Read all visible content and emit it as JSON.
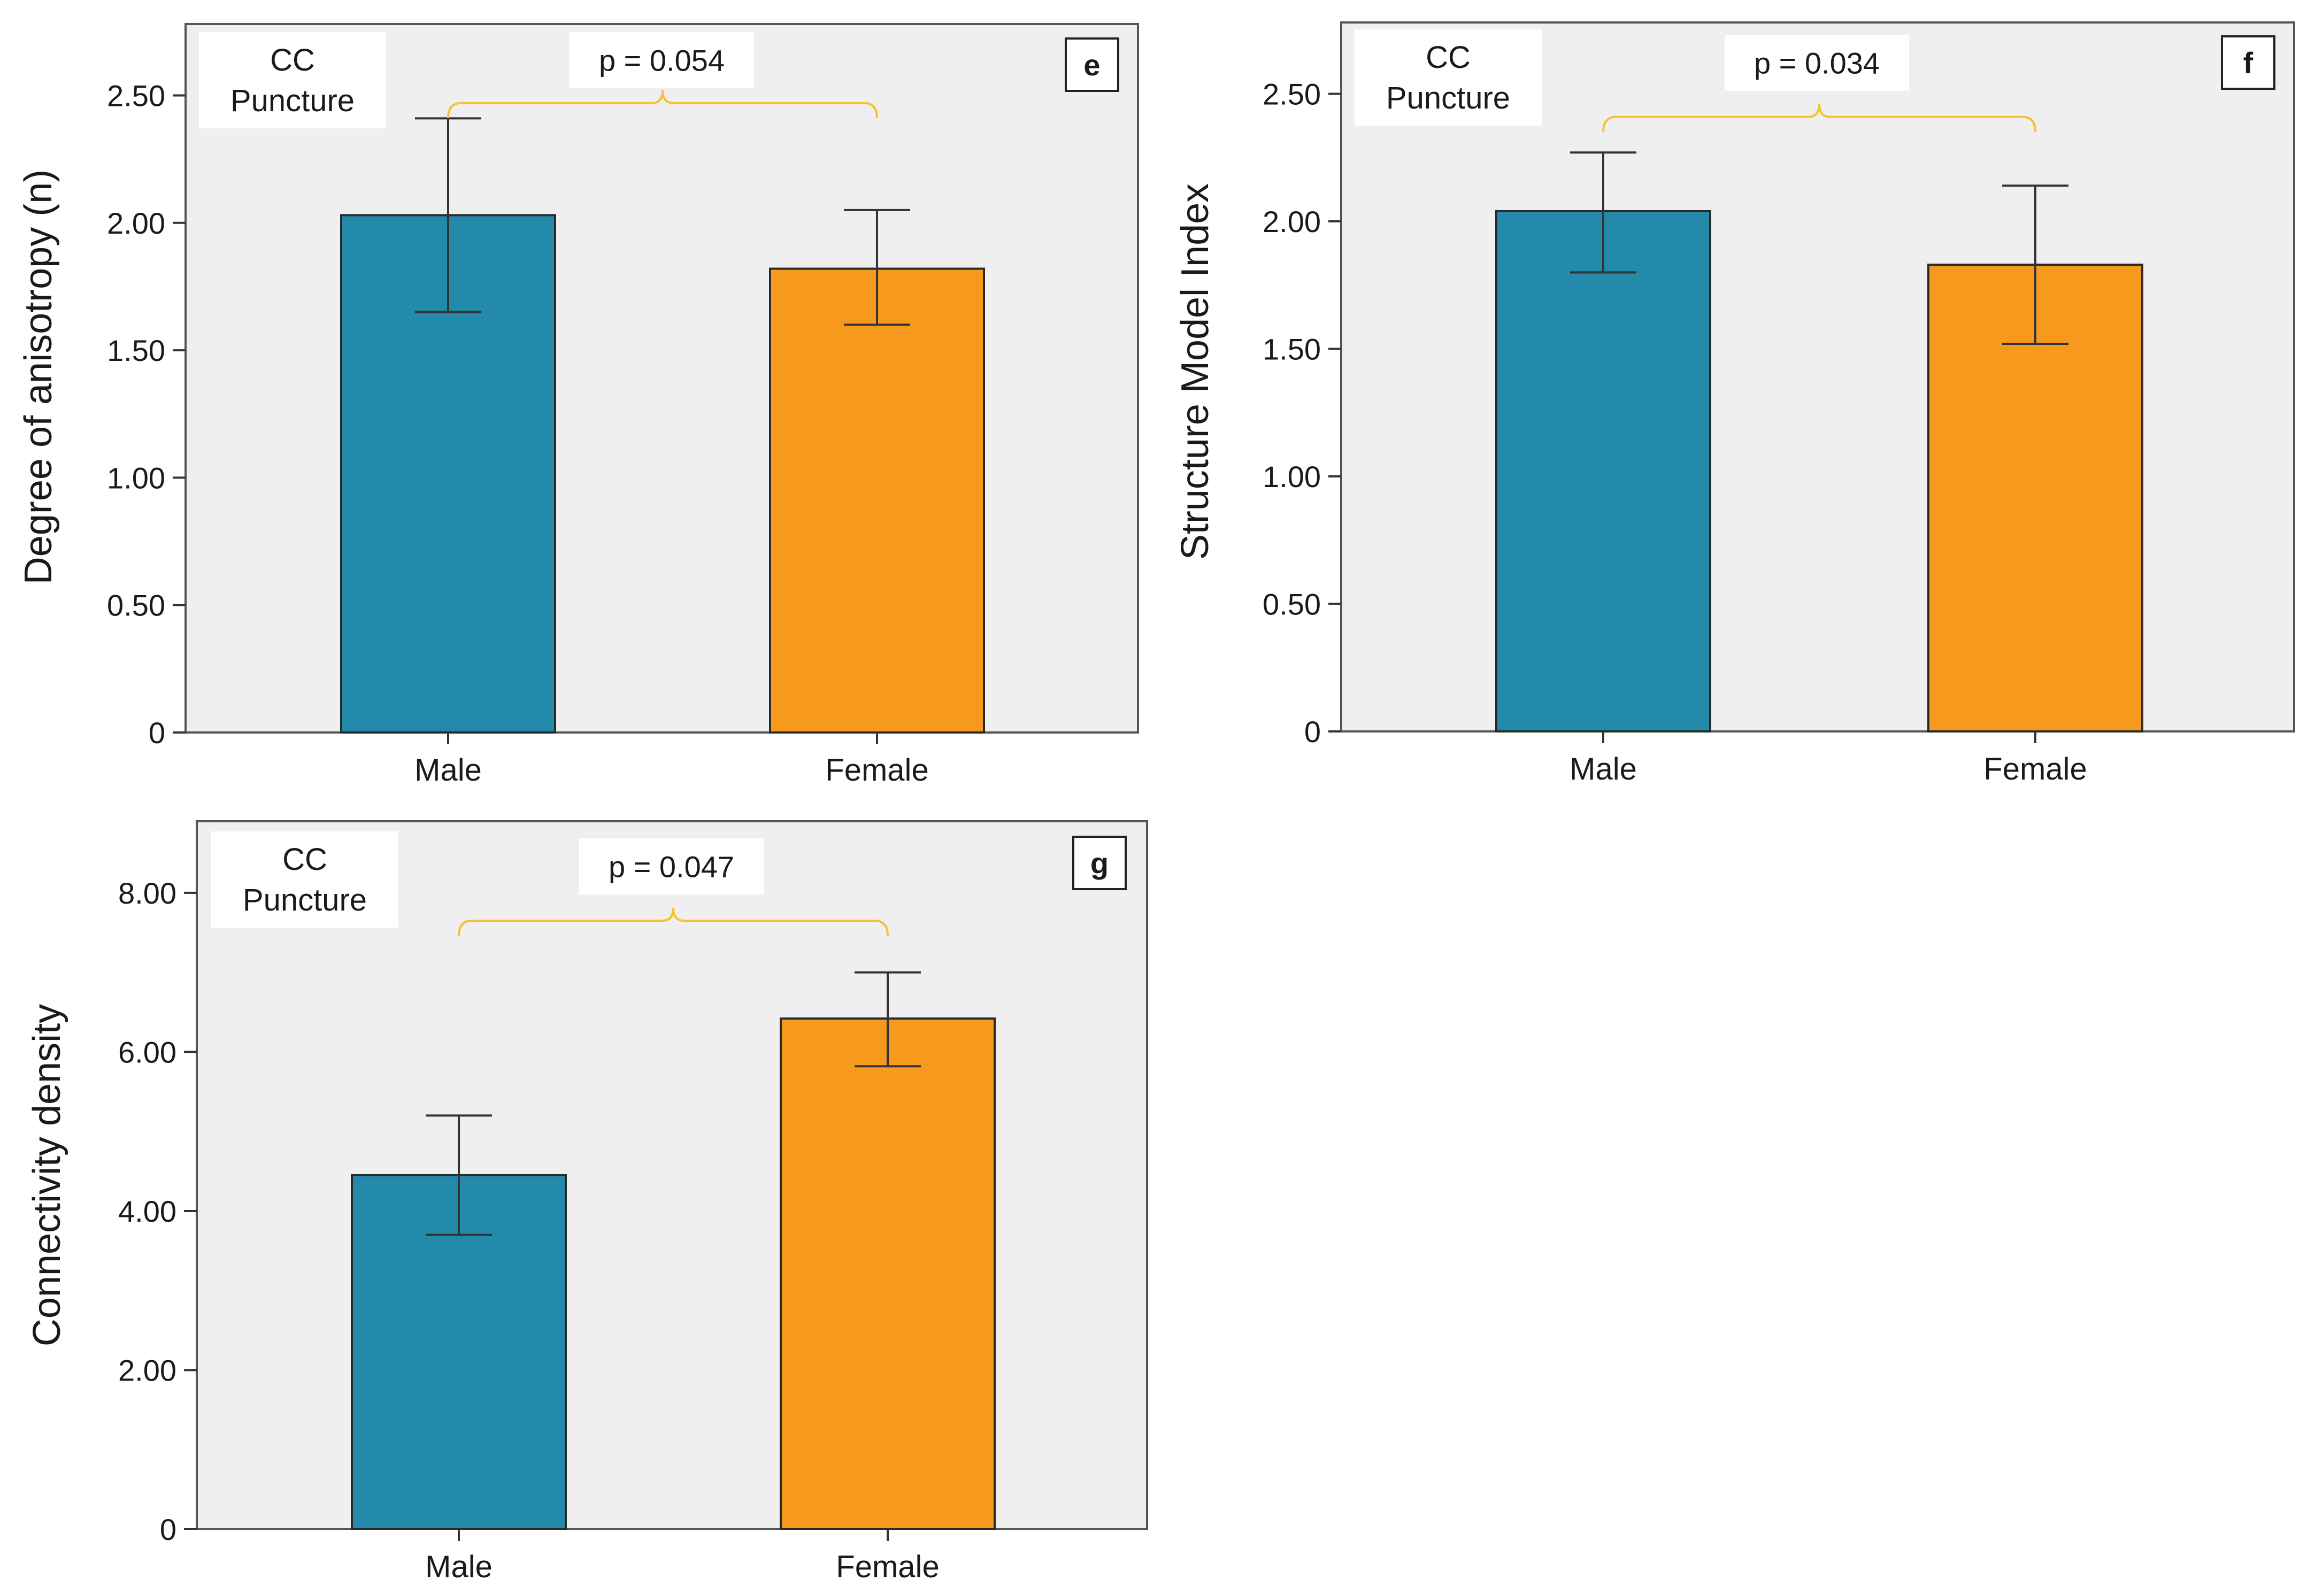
{
  "chart_data": [
    {
      "type": "bar",
      "panel": "e",
      "annotation": "CC\nPuncture",
      "categories": [
        "Male",
        "Female"
      ],
      "values": [
        2.03,
        1.82
      ],
      "error_low": [
        1.65,
        1.6
      ],
      "error_high": [
        2.41,
        2.05
      ],
      "colors": [
        "#238aac",
        "#f7991d"
      ],
      "ylabel": "Degree of anisotropy (n)",
      "ylim": [
        0,
        2.78
      ],
      "yticks": [
        0,
        0.5,
        1.0,
        1.5,
        2.0,
        2.5
      ],
      "ytick_labels": [
        "0",
        "0.50",
        "1.00",
        "1.50",
        "2.00",
        "2.50"
      ],
      "bracket_value": 2.47,
      "p_value_label": "p = 0.054"
    },
    {
      "type": "bar",
      "panel": "f",
      "annotation": "CC\nPuncture",
      "categories": [
        "Male",
        "Female"
      ],
      "values": [
        2.04,
        1.83
      ],
      "error_low": [
        1.8,
        1.52
      ],
      "error_high": [
        2.27,
        2.14
      ],
      "colors": [
        "#238aac",
        "#f7991d"
      ],
      "ylabel": "Structure Model Index",
      "ylim": [
        0,
        2.78
      ],
      "yticks": [
        0,
        0.5,
        1.0,
        1.5,
        2.0,
        2.5
      ],
      "ytick_labels": [
        "0",
        "0.50",
        "1.00",
        "1.50",
        "2.00",
        "2.50"
      ],
      "bracket_value": 2.41,
      "p_value_label": "p = 0.034"
    },
    {
      "type": "bar",
      "panel": "g",
      "annotation": "CC\nPuncture",
      "categories": [
        "Male",
        "Female"
      ],
      "values": [
        4.45,
        6.42
      ],
      "error_low": [
        3.7,
        5.82
      ],
      "error_high": [
        5.2,
        7.0
      ],
      "colors": [
        "#238aac",
        "#f7991d"
      ],
      "ylabel": "Connectivity density",
      "ylim": [
        0,
        8.9
      ],
      "yticks": [
        0,
        2,
        4,
        6,
        8
      ],
      "ytick_labels": [
        "0",
        "2.00",
        "4.00",
        "6.00",
        "8.00"
      ],
      "bracket_value": 7.65,
      "p_value_label": "p = 0.047"
    }
  ]
}
